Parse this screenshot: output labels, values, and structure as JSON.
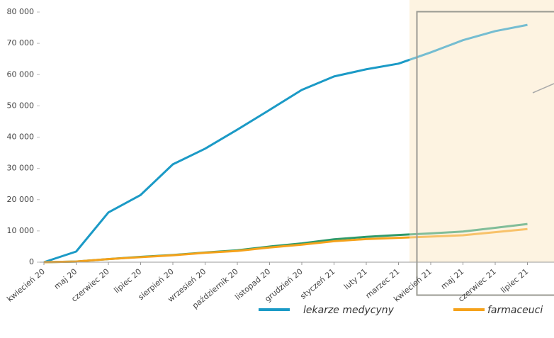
{
  "chart_data": {
    "type": "line",
    "categories": [
      "kwiecień 20",
      "maj 20",
      "czerwiec 20",
      "lipiec 20",
      "sierpień 20",
      "wrzesień 20",
      "październik 20",
      "listopad 20",
      "grudzień 20",
      "styczeń 21",
      "luty 21",
      "marzec 21",
      "kwiecień 21",
      "maj 21",
      "czerwiec 21",
      "lipiec 21"
    ],
    "series": [
      {
        "name": "lekarze medycyny",
        "color": "#1b9ac6",
        "values": [
          0,
          3400,
          15900,
          21500,
          31300,
          36300,
          42400,
          48700,
          55100,
          59400,
          61700,
          63500,
          67100,
          71000,
          73900,
          75900
        ]
      },
      {
        "color": "#2f9a6a",
        "values": [
          0,
          200,
          1000,
          1700,
          2300,
          3100,
          3800,
          5000,
          6000,
          7300,
          8100,
          8700,
          9200,
          9800,
          11000,
          12200
        ]
      },
      {
        "name": "farmaceuci",
        "color": "#f5a21b",
        "values": [
          0,
          200,
          1000,
          1600,
          2200,
          3000,
          3600,
          4700,
          5600,
          6700,
          7400,
          7800,
          8200,
          8600,
          9600,
          10600
        ]
      }
    ],
    "ylim": [
      0,
      80000
    ],
    "yticks": [
      0,
      {
        "value": 10000,
        "label": "10 000"
      },
      {
        "value": 20000,
        "label": "20 000"
      },
      {
        "value": 30000,
        "label": "30 000"
      },
      {
        "value": 40000,
        "label": "40 000"
      },
      {
        "value": 50000,
        "label": "50 000"
      },
      {
        "value": 60000,
        "label": "60 000"
      },
      {
        "value": 70000,
        "label": "70 000"
      },
      {
        "value": 80000,
        "label": "80 000"
      }
    ]
  }
}
